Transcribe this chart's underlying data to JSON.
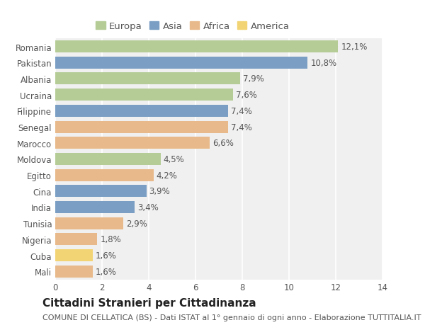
{
  "countries": [
    "Romania",
    "Pakistan",
    "Albania",
    "Ucraina",
    "Filippine",
    "Senegal",
    "Marocco",
    "Moldova",
    "Egitto",
    "Cina",
    "India",
    "Tunisia",
    "Nigeria",
    "Cuba",
    "Mali"
  ],
  "values": [
    12.1,
    10.8,
    7.9,
    7.6,
    7.4,
    7.4,
    6.6,
    4.5,
    4.2,
    3.9,
    3.4,
    2.9,
    1.8,
    1.6,
    1.6
  ],
  "labels": [
    "12,1%",
    "10,8%",
    "7,9%",
    "7,6%",
    "7,4%",
    "7,4%",
    "6,6%",
    "4,5%",
    "4,2%",
    "3,9%",
    "3,4%",
    "2,9%",
    "1,8%",
    "1,6%",
    "1,6%"
  ],
  "colors": [
    "#b5cc96",
    "#7b9fc4",
    "#b5cc96",
    "#b5cc96",
    "#7b9fc4",
    "#e8b98a",
    "#e8b98a",
    "#b5cc96",
    "#e8b98a",
    "#7b9fc4",
    "#7b9fc4",
    "#e8b98a",
    "#e8b98a",
    "#f2d475",
    "#e8b98a"
  ],
  "legend_labels": [
    "Europa",
    "Asia",
    "Africa",
    "America"
  ],
  "legend_colors": [
    "#b5cc96",
    "#7b9fc4",
    "#e8b98a",
    "#f2d475"
  ],
  "xlim": [
    0,
    14
  ],
  "xticks": [
    0,
    2,
    4,
    6,
    8,
    10,
    12,
    14
  ],
  "title": "Cittadini Stranieri per Cittadinanza",
  "subtitle": "COMUNE DI CELLATICA (BS) - Dati ISTAT al 1° gennaio di ogni anno - Elaborazione TUTTITALIA.IT",
  "background_color": "#ffffff",
  "plot_bg_color": "#f0f0f0",
  "grid_color": "#ffffff",
  "bar_height": 0.75,
  "title_fontsize": 11,
  "subtitle_fontsize": 8,
  "label_fontsize": 8.5,
  "tick_fontsize": 8.5,
  "legend_fontsize": 9.5
}
